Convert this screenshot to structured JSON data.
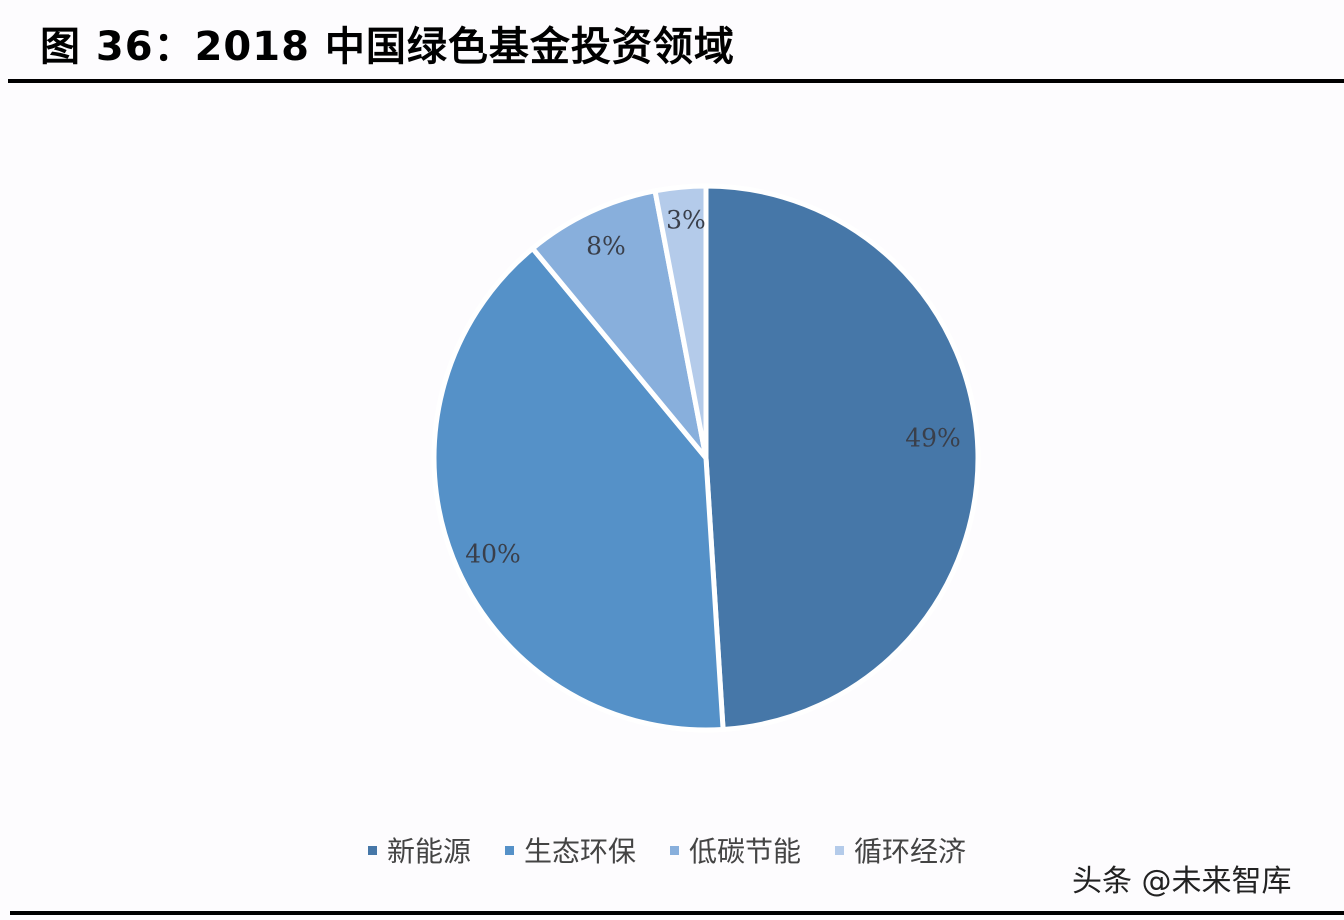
{
  "title": "图 36：2018 中国绿色基金投资领域",
  "watermark": "头条 @未来智库",
  "legend": [
    {
      "label": "新能源",
      "color": "#4677a8"
    },
    {
      "label": "生态环保",
      "color": "#5591c8"
    },
    {
      "label": "低碳节能",
      "color": "#88afdc"
    },
    {
      "label": "循环经济",
      "color": "#b4cbea"
    }
  ],
  "chart_data": {
    "type": "pie",
    "title": "图 36：2018 中国绿色基金投资领域",
    "categories": [
      "新能源",
      "生态环保",
      "低碳节能",
      "循环经济"
    ],
    "values": [
      49,
      40,
      8,
      3
    ],
    "unit": "%",
    "data_labels": [
      "49%",
      "40%",
      "8%",
      "3%"
    ],
    "colors": [
      "#4677a8",
      "#5591c8",
      "#88afdc",
      "#b4cbea"
    ],
    "start_angle": "12 o'clock, clockwise",
    "legend_position": "bottom"
  }
}
